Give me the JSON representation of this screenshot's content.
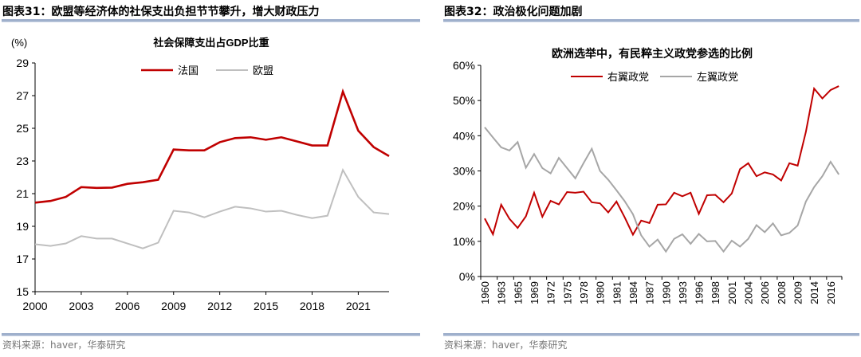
{
  "panels": [
    {
      "header": "图表31：欧盟等经济体的社保支出负担节节攀升，增大财政压力",
      "source": "资料来源：haver，华泰研究"
    },
    {
      "header": "图表32：政治极化问题加剧",
      "source": "资料来源：haver，华泰研究"
    }
  ],
  "chart_data": [
    {
      "type": "line",
      "title": "社会保障支出占GDP比重",
      "ylabel": "(%)",
      "ylim": [
        15,
        29
      ],
      "yticks": [
        "15",
        "17",
        "19",
        "21",
        "23",
        "25",
        "27",
        "29"
      ],
      "x": [
        2000,
        2001,
        2002,
        2003,
        2004,
        2005,
        2006,
        2007,
        2008,
        2009,
        2010,
        2011,
        2012,
        2013,
        2014,
        2015,
        2016,
        2017,
        2018,
        2019,
        2020,
        2021,
        2022,
        2023
      ],
      "xticks": [
        "2000",
        "2003",
        "2006",
        "2009",
        "2012",
        "2015",
        "2018",
        "2021"
      ],
      "legend": "top-center",
      "grid": false,
      "series": [
        {
          "name": "法国",
          "color": "#c00000",
          "values": [
            20.45,
            20.55,
            20.8,
            21.4,
            21.35,
            21.37,
            21.6,
            21.7,
            21.85,
            23.7,
            23.65,
            23.65,
            24.15,
            24.4,
            24.45,
            24.3,
            24.45,
            24.2,
            23.95,
            23.95,
            27.25,
            24.85,
            23.85,
            23.3
          ]
        },
        {
          "name": "欧盟",
          "color": "#bfbfbf",
          "values": [
            17.9,
            17.8,
            17.95,
            18.4,
            18.25,
            18.25,
            17.95,
            17.65,
            18.0,
            19.95,
            19.85,
            19.55,
            19.9,
            20.2,
            20.1,
            19.9,
            19.95,
            19.7,
            19.5,
            19.65,
            22.45,
            20.8,
            19.85,
            19.75
          ]
        }
      ]
    },
    {
      "type": "line",
      "title": "欧洲选举中，有民粹主义政党参选的比例",
      "ylim": [
        0,
        60
      ],
      "yticks": [
        "0%",
        "10%",
        "20%",
        "30%",
        "40%",
        "50%",
        "60%"
      ],
      "categories": [
        "1960",
        "",
        "1963",
        "",
        "1965",
        "",
        "1969",
        "",
        "1972",
        "",
        "1975",
        "",
        "1978",
        "",
        "1980",
        "",
        "1981",
        "",
        "1984",
        "",
        "1987",
        "",
        "1990",
        "",
        "1993",
        "",
        "1996",
        "",
        "1998",
        "",
        "2001",
        "",
        "2004",
        "",
        "2006",
        "",
        "2008",
        "",
        "2009",
        "",
        "2014",
        "",
        "2016",
        ""
      ],
      "legend": "top-center",
      "grid": false,
      "series": [
        {
          "name": "右翼政党",
          "color": "#c00000",
          "values": [
            16.5,
            12.0,
            20.4,
            16.4,
            13.8,
            17.1,
            23.8,
            17.0,
            21.5,
            20.5,
            24.0,
            23.8,
            24.1,
            21.1,
            20.8,
            18.2,
            21.3,
            16.8,
            11.9,
            15.9,
            15.2,
            20.4,
            20.5,
            23.8,
            22.8,
            23.8,
            17.8,
            23.1,
            23.2,
            21.1,
            23.6,
            30.5,
            32.2,
            28.5,
            29.6,
            29.0,
            27.3,
            32.2,
            31.5,
            41.1,
            53.4,
            50.6,
            53.0,
            54.1
          ]
        },
        {
          "name": "左翼政党",
          "color": "#a6a6a6",
          "values": [
            42.4,
            39.5,
            36.7,
            35.8,
            38.2,
            30.9,
            34.8,
            30.8,
            29.3,
            33.7,
            30.8,
            27.9,
            32.2,
            36.3,
            30.0,
            27.5,
            24.5,
            21.4,
            17.7,
            11.7,
            8.5,
            10.5,
            7.1,
            10.7,
            12.0,
            9.3,
            12.1,
            10.0,
            10.1,
            7.1,
            10.2,
            8.5,
            10.7,
            14.6,
            12.6,
            15.1,
            11.7,
            12.4,
            14.5,
            21.3,
            25.4,
            28.5,
            32.6,
            29.0
          ]
        }
      ]
    }
  ]
}
